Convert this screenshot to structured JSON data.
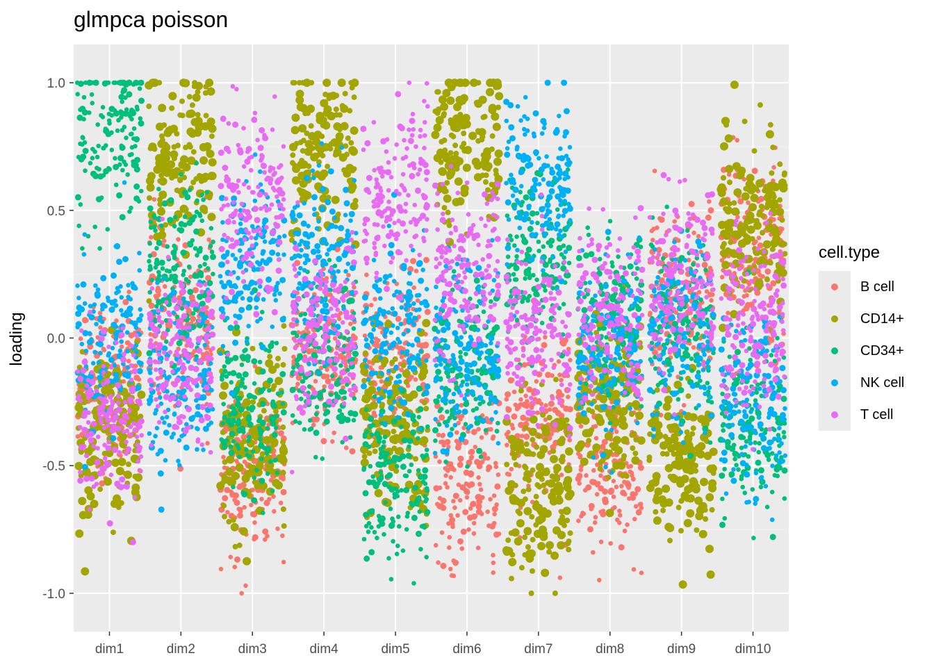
{
  "chart_data": {
    "type": "scatter",
    "title": "glmpca poisson",
    "xlabel": "",
    "ylabel": "loading",
    "categories": [
      "dim1",
      "dim2",
      "dim3",
      "dim4",
      "dim5",
      "dim6",
      "dim7",
      "dim8",
      "dim9",
      "dim10"
    ],
    "ylim": [
      -1.15,
      1.15
    ],
    "yticks": [
      "1.0",
      "0.5",
      "0.0",
      "-0.5",
      "-1.0"
    ],
    "ytick_values": [
      1.0,
      0.5,
      0.0,
      -0.5,
      -1.0
    ],
    "grid": true,
    "legend_position": "right",
    "legend_title": "cell.type",
    "series": [
      {
        "name": "B cell",
        "color": "#F8766D",
        "centers": [
          -0.18,
          0.08,
          -0.52,
          -0.05,
          -0.1,
          -0.55,
          -0.3,
          -0.5,
          0.15,
          0.3
        ]
      },
      {
        "name": "CD14+",
        "color": "#A3A500",
        "centers": [
          -0.35,
          0.72,
          -0.4,
          0.72,
          -0.35,
          0.78,
          -0.6,
          -0.2,
          -0.5,
          0.45
        ]
      },
      {
        "name": "CD34+",
        "color": "#00BF7D",
        "centers": [
          0.82,
          0.25,
          -0.25,
          -0.1,
          -0.55,
          -0.15,
          0.3,
          0.1,
          0.05,
          -0.35
        ]
      },
      {
        "name": "NK cell",
        "color": "#00B0F6",
        "centers": [
          0.0,
          -0.15,
          0.3,
          0.3,
          0.0,
          -0.05,
          0.6,
          -0.05,
          0.0,
          -0.25
        ]
      },
      {
        "name": "T cell",
        "color": "#E76BF3",
        "centers": [
          -0.3,
          -0.05,
          0.5,
          0.05,
          0.55,
          0.25,
          0.0,
          0.1,
          0.2,
          0.05
        ]
      }
    ]
  }
}
